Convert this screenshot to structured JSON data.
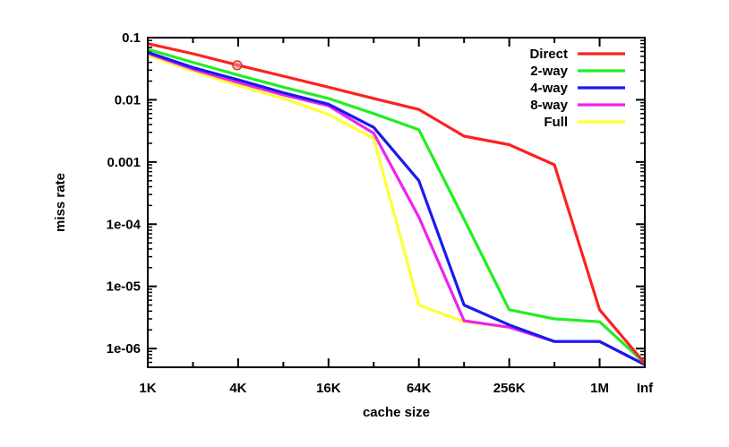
{
  "chart_data": {
    "type": "line",
    "xlabel": "cache size",
    "ylabel": "miss rate",
    "y_scale": "log",
    "ylim": [
      5e-07,
      0.1
    ],
    "x_ticks": [
      "1K",
      "4K",
      "16K",
      "64K",
      "256K",
      "1M",
      "Inf"
    ],
    "y_ticks": [
      "0.1",
      "0.01",
      "0.001",
      "1e-04",
      "1e-05",
      "1e-06"
    ],
    "y_tick_values": [
      0.1,
      0.01,
      0.001,
      0.0001,
      1e-05,
      1e-06
    ],
    "x": [
      "1K",
      "2K",
      "4K",
      "8K",
      "16K",
      "32K",
      "64K",
      "128K",
      "256K",
      "512K",
      "1M",
      "Inf"
    ],
    "legend_position": "top-right",
    "series": [
      {
        "name": "Direct",
        "color": "#ff2020",
        "values": [
          0.08,
          0.055,
          0.036,
          0.024,
          0.016,
          0.0105,
          0.007,
          0.0026,
          0.0019,
          0.0009,
          4.2e-06,
          5.8e-07
        ]
      },
      {
        "name": "2-way",
        "color": "#22ee22",
        "values": [
          0.065,
          0.04,
          0.025,
          0.016,
          0.0105,
          0.006,
          0.0033,
          0.00012,
          4.2e-06,
          3e-06,
          2.7e-06,
          5.8e-07
        ]
      },
      {
        "name": "4-way",
        "color": "#1a1aee",
        "values": [
          0.058,
          0.033,
          0.021,
          0.013,
          0.0085,
          0.0036,
          0.0005,
          5e-06,
          2.4e-06,
          1.3e-06,
          1.3e-06,
          5.5e-07
        ]
      },
      {
        "name": "8-way",
        "color": "#ee22ee",
        "values": [
          0.056,
          0.031,
          0.019,
          0.012,
          0.008,
          0.0029,
          0.00013,
          2.8e-06,
          2.2e-06,
          1.3e-06,
          1.3e-06,
          5.5e-07
        ]
      },
      {
        "name": "Full",
        "color": "#ffff33",
        "values": [
          0.052,
          0.029,
          0.017,
          0.0105,
          0.0058,
          0.0024,
          5e-06,
          2.7e-06,
          2.2e-06,
          1.3e-06,
          1.3e-06,
          5.5e-07
        ]
      }
    ]
  }
}
